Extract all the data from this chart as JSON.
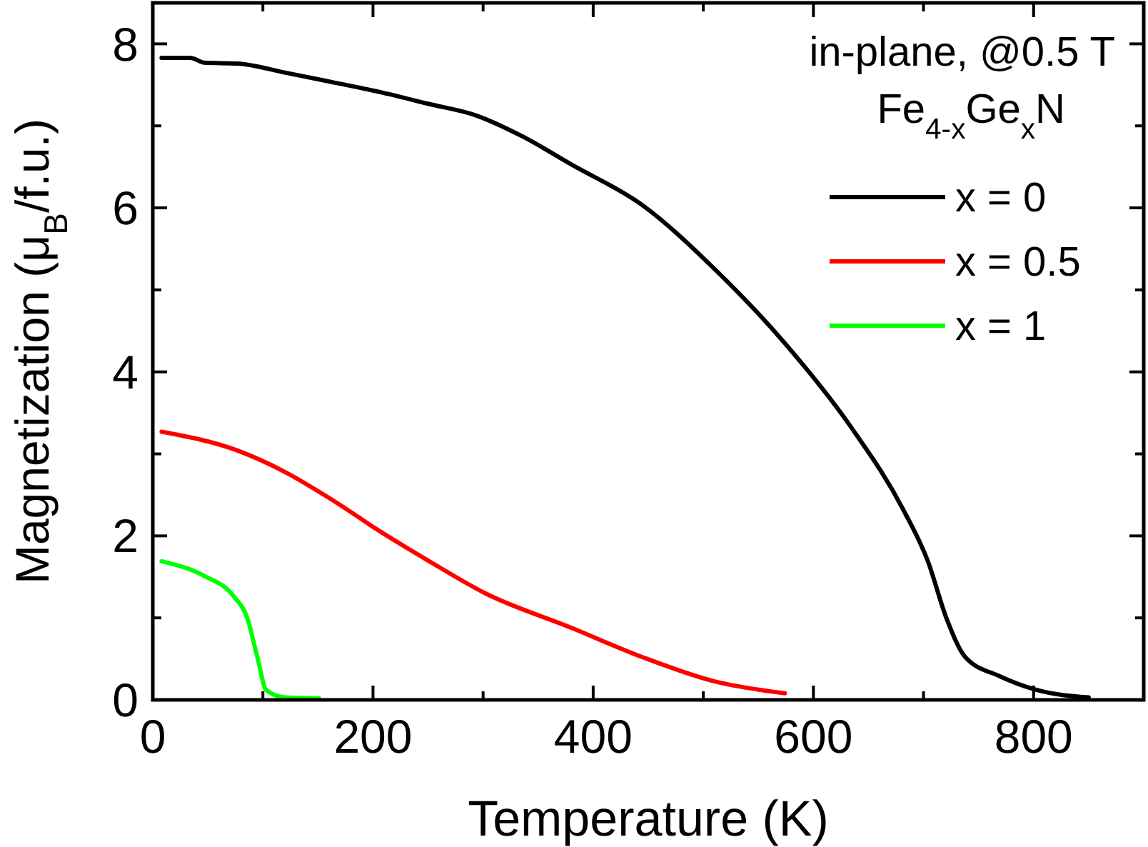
{
  "chart_data": {
    "type": "line",
    "xlabel": "Temperature (K)",
    "ylabel": "Magnetization (μ$_{B}$/f.u.)",
    "legend_title": "Fe$_{4-x}$Ge$_{x}$N",
    "annotations": [
      "in-plane, @0.5 T"
    ],
    "xlim": [
      0,
      900
    ],
    "ylim": [
      0,
      8.5
    ],
    "xticks": [
      0,
      {
        "value": 100,
        "label": null
      },
      200,
      {
        "value": 300,
        "label": null
      },
      400,
      {
        "value": 500,
        "label": null
      },
      600,
      {
        "value": 700,
        "label": null
      },
      800
    ],
    "yticks": [
      0,
      {
        "value": 1,
        "label": null
      },
      2,
      {
        "value": 3,
        "label": null
      },
      4,
      {
        "value": 5,
        "label": null
      },
      6,
      {
        "value": 7,
        "label": null
      },
      8
    ],
    "legend": "top right",
    "grid": false,
    "marker": "none",
    "line_style": "solid",
    "series": [
      {
        "name": "x = 0",
        "color": "#000000",
        "x": [
          8,
          34,
          47,
          77,
          120,
          164,
          207,
          250,
          293,
          336,
          380,
          445,
          509,
          574,
          634,
          682,
          704,
          721,
          738,
          769,
          803,
          850
        ],
        "values": [
          7.83,
          7.83,
          7.77,
          7.76,
          7.65,
          7.53,
          7.41,
          7.27,
          7.13,
          6.87,
          6.53,
          6.03,
          5.27,
          4.35,
          3.33,
          2.31,
          1.69,
          0.99,
          0.52,
          0.29,
          0.12,
          0.03
        ]
      },
      {
        "name": "x = 0.5",
        "color": "#ff0000",
        "x": [
          8,
          77,
          120,
          164,
          207,
          250,
          302,
          380,
          445,
          509,
          574
        ],
        "values": [
          3.27,
          3.04,
          2.78,
          2.43,
          2.05,
          1.7,
          1.3,
          0.88,
          0.52,
          0.23,
          0.08
        ]
      },
      {
        "name": "x = 1",
        "color": "#00ff00",
        "x": [
          8,
          47,
          73,
          86,
          95,
          103,
          120,
          151
        ],
        "values": [
          1.69,
          1.51,
          1.27,
          0.99,
          0.52,
          0.12,
          0.03,
          0.02
        ]
      }
    ]
  }
}
